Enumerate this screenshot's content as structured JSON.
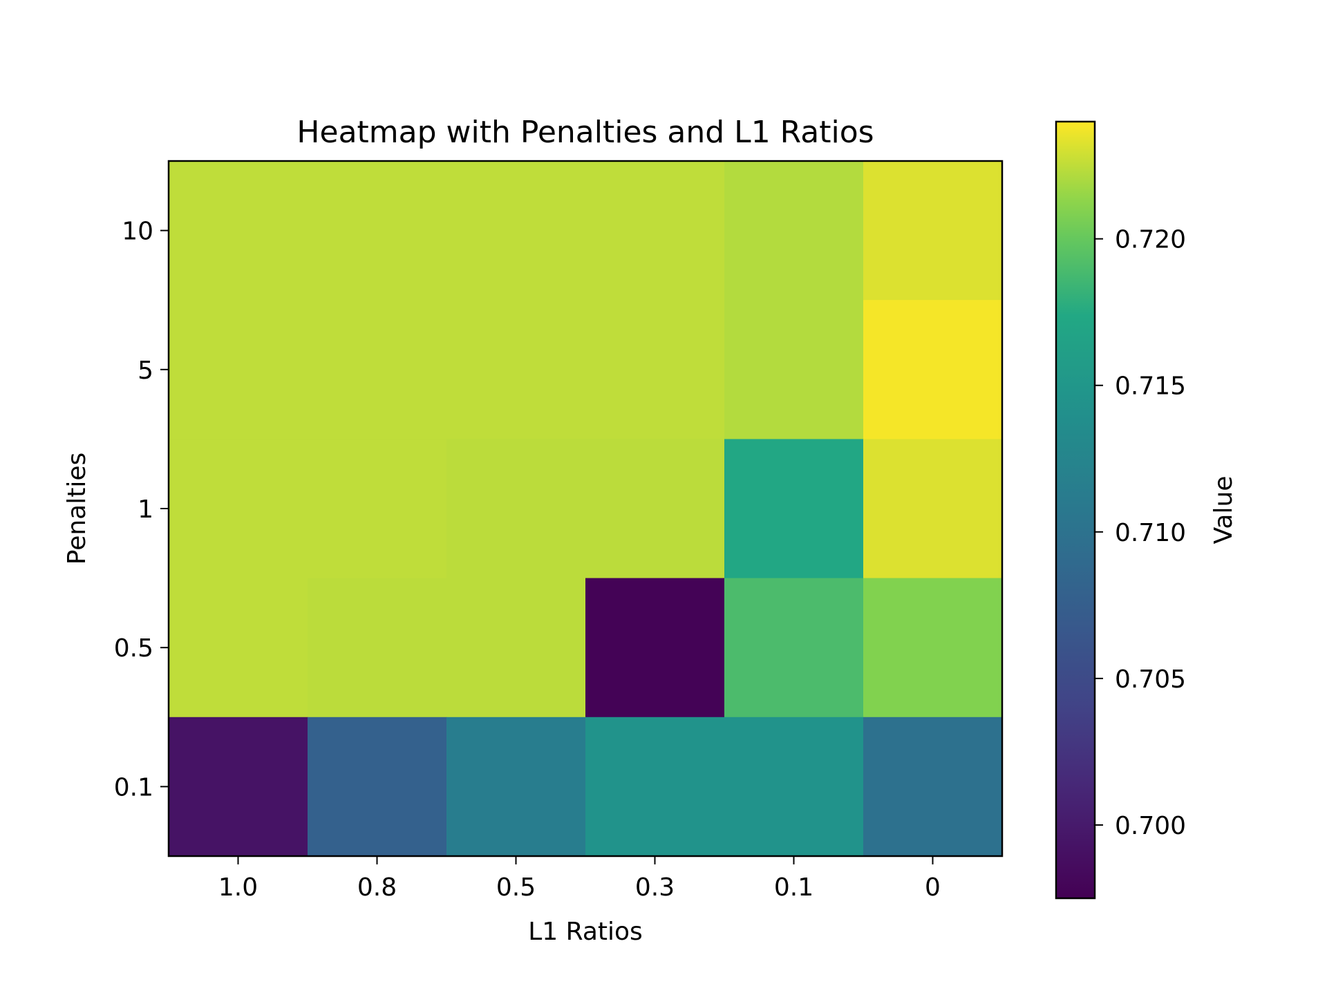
{
  "chart_data": {
    "type": "heatmap",
    "title": "Heatmap with Penalties and L1 Ratios",
    "xlabel": "L1 Ratios",
    "ylabel": "Penalties",
    "x_categories": [
      "1.0",
      "0.8",
      "0.5",
      "0.3",
      "0.1",
      "0"
    ],
    "y_categories": [
      "10",
      "5",
      "1",
      "0.5",
      "0.1"
    ],
    "values": [
      [
        0.7225,
        0.7225,
        0.7225,
        0.7225,
        0.7222,
        0.7232
      ],
      [
        0.7225,
        0.7225,
        0.7225,
        0.7225,
        0.7222,
        0.7238
      ],
      [
        0.7225,
        0.7225,
        0.7224,
        0.7224,
        0.7173,
        0.7232
      ],
      [
        0.7225,
        0.7224,
        0.7224,
        0.6977,
        0.719,
        0.721
      ],
      [
        0.6993,
        0.7078,
        0.7115,
        0.7145,
        0.7145,
        0.7098
      ]
    ],
    "colormap": "viridis",
    "colorbar": {
      "label": "Value",
      "range": [
        0.6975,
        0.724
      ],
      "ticks": [
        "0.700",
        "0.705",
        "0.710",
        "0.715",
        "0.720"
      ]
    },
    "grid": false
  }
}
